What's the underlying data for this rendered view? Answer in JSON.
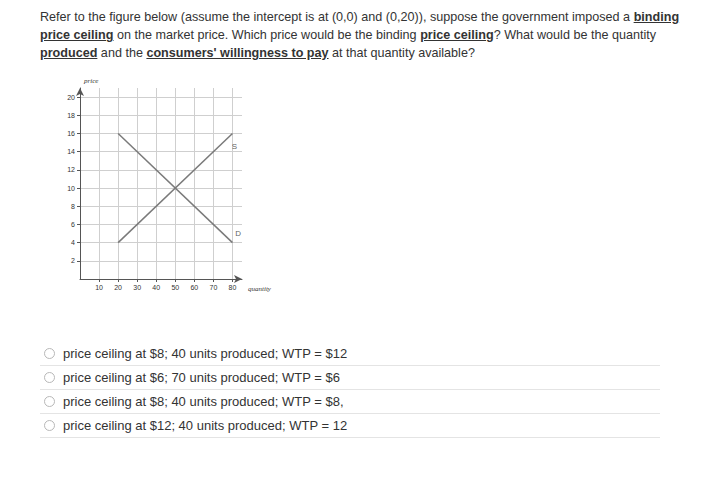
{
  "question": [
    [
      {
        "text": "Refer to the figure below (assume the intercept is at (0,0) and (0,20)), suppose the government imposed a "
      },
      {
        "text": "binding",
        "underline": true
      }
    ],
    [
      {
        "text": "price ceiling",
        "underline": true
      },
      {
        "text": " on the market price. Which price would be the binding "
      },
      {
        "text": "price ceiling",
        "underline": true
      },
      {
        "text": "? What would be the quantity"
      }
    ],
    [
      {
        "text": "produced",
        "underline": true
      },
      {
        "text": " and the "
      },
      {
        "text": "consumers' willingness to pay",
        "underline": true
      },
      {
        "text": " at that quantity available?"
      }
    ]
  ],
  "chart_data": {
    "type": "line",
    "xlabel": "quantity",
    "ylabel": "price",
    "xlim": [
      0,
      85
    ],
    "ylim": [
      0,
      21
    ],
    "xticks": [
      10,
      20,
      30,
      40,
      50,
      60,
      70,
      80
    ],
    "yticks": [
      2,
      4,
      6,
      8,
      10,
      12,
      14,
      16,
      18,
      20
    ],
    "grid": true,
    "series": [
      {
        "x": [
          20,
          80
        ],
        "values": [
          4,
          16
        ],
        "color": "#7a7a7a"
      },
      {
        "x": [
          20,
          80
        ],
        "values": [
          16,
          4
        ],
        "color": "#7a7a7a"
      }
    ],
    "annotations": [
      {
        "text": "S",
        "x": 81,
        "y": 14.6
      },
      {
        "text": "D",
        "x": 83,
        "y": 5
      }
    ]
  },
  "options": [
    "price ceiling at $8; 40 units produced; WTP = $12",
    "price ceiling at $6; 70 units produced; WTP = $6",
    "price ceiling at $8; 40 units produced; WTP = $8,",
    "price ceiling at $12; 40 units produced; WTP = 12"
  ]
}
